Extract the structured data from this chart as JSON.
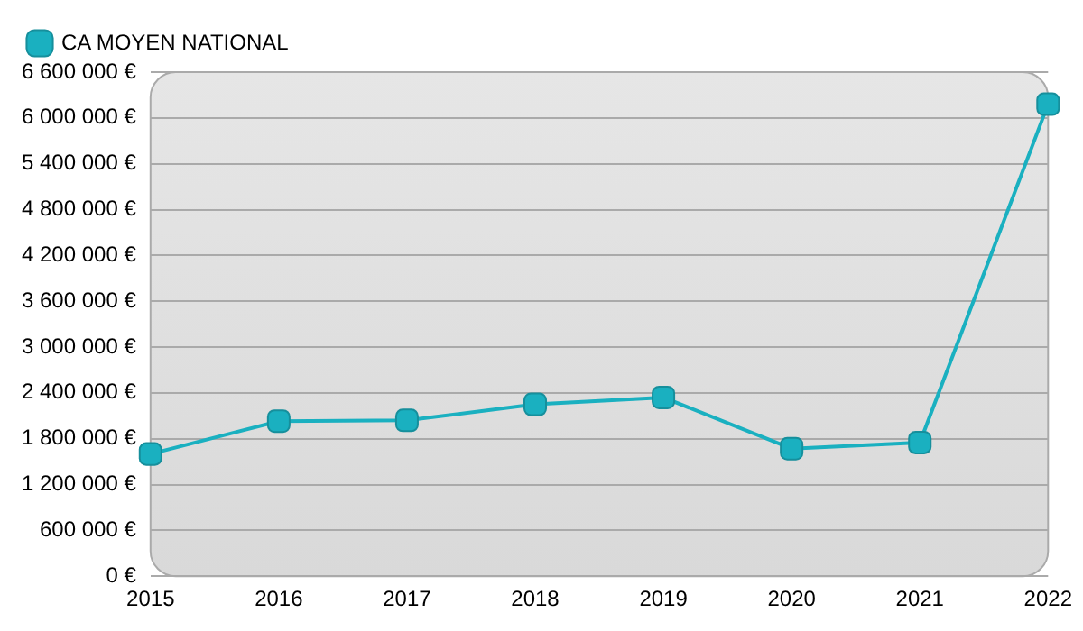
{
  "chart_data": {
    "type": "line",
    "categories": [
      "2015",
      "2016",
      "2017",
      "2018",
      "2019",
      "2020",
      "2021",
      "2022"
    ],
    "series": [
      {
        "name": "CA MOYEN NATIONAL",
        "color": "#1ab0c0",
        "values": [
          1600000,
          2030000,
          2040000,
          2250000,
          2340000,
          1670000,
          1750000,
          6180000
        ]
      }
    ],
    "ylim": [
      0,
      6600000
    ],
    "yticks": [
      {
        "value": 0,
        "label": "0 €"
      },
      {
        "value": 600000,
        "label": "600 000 €"
      },
      {
        "value": 1200000,
        "label": "1 200 000 €"
      },
      {
        "value": 1800000,
        "label": "1 800 000 €"
      },
      {
        "value": 2400000,
        "label": "2 400 000 €"
      },
      {
        "value": 3000000,
        "label": "3 000 000 €"
      },
      {
        "value": 3600000,
        "label": "3 600 000 €"
      },
      {
        "value": 4200000,
        "label": "4 200 000 €"
      },
      {
        "value": 4800000,
        "label": "4 800 000 €"
      },
      {
        "value": 5400000,
        "label": "5 400 000 €"
      },
      {
        "value": 6000000,
        "label": "6 000 000 €"
      },
      {
        "value": 6600000,
        "label": "6 600 000 €"
      }
    ],
    "grid": "y",
    "legend": "top left",
    "marker": "square",
    "line_style": "solid"
  }
}
